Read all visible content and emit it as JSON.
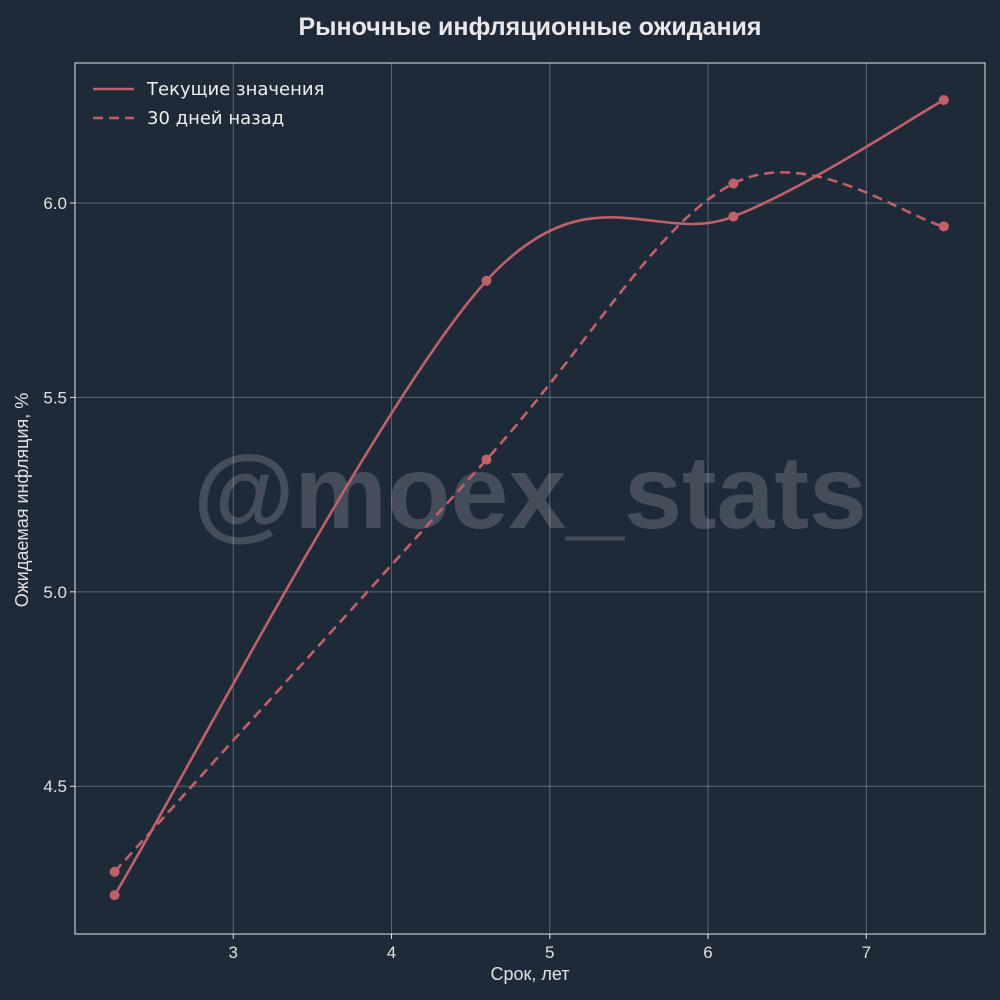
{
  "chart_data": {
    "type": "line",
    "title": "Рыночные инфляционные ожидания",
    "xlabel": "Срок, лет",
    "ylabel": "Ожидаемая инфляция, %",
    "xlim": [
      2.0,
      7.75
    ],
    "ylim": [
      4.12,
      6.36
    ],
    "x_ticks": [
      3,
      4,
      5,
      6,
      7
    ],
    "x_tick_labels": [
      "3",
      "4",
      "5",
      "6",
      "7"
    ],
    "y_ticks": [
      4.5,
      5.0,
      5.5,
      6.0
    ],
    "y_tick_labels": [
      "4.5",
      "5.0",
      "5.5",
      "6.0"
    ],
    "grid": true,
    "legend_position": "top-left",
    "watermark": "@moex_stats",
    "series": [
      {
        "name": "Текущие значения",
        "style": "solid",
        "color": "#c0616a",
        "points": [
          {
            "x": 2.25,
            "y": 4.22
          },
          {
            "x": 4.6,
            "y": 5.8
          },
          {
            "x": 6.16,
            "y": 5.965
          },
          {
            "x": 7.49,
            "y": 6.265
          }
        ]
      },
      {
        "name": "30 дней назад",
        "style": "dashed",
        "color": "#c0616a",
        "points": [
          {
            "x": 2.25,
            "y": 4.28
          },
          {
            "x": 4.6,
            "y": 5.34
          },
          {
            "x": 6.16,
            "y": 6.05
          },
          {
            "x": 7.49,
            "y": 5.94
          }
        ]
      }
    ]
  }
}
